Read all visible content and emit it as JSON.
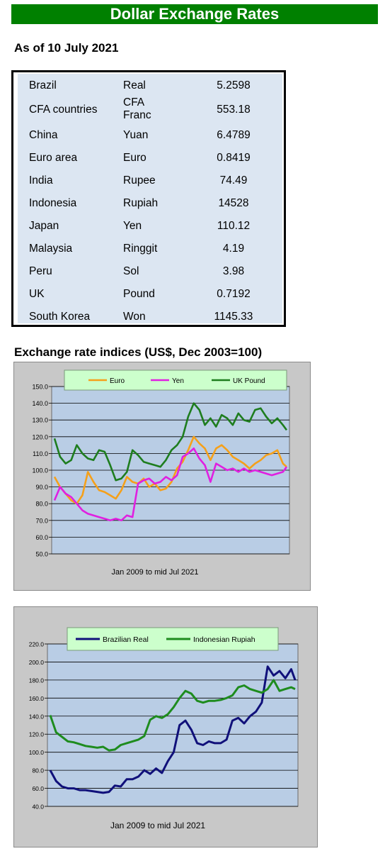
{
  "header": {
    "title": "Dollar Exchange Rates",
    "as_of": "As of 10 July 2021"
  },
  "rates": [
    {
      "country": "Brazil",
      "currency": "Real",
      "value": "5.2598"
    },
    {
      "country": "CFA countries",
      "currency": "CFA Franc",
      "value": "553.18"
    },
    {
      "country": "China",
      "currency": "Yuan",
      "value": "6.4789"
    },
    {
      "country": "Euro area",
      "currency": "Euro",
      "value": "0.8419"
    },
    {
      "country": "India",
      "currency": "Rupee",
      "value": "74.49"
    },
    {
      "country": "Indonesia",
      "currency": "Rupiah",
      "value": "14528"
    },
    {
      "country": "Japan",
      "currency": "Yen",
      "value": "110.12"
    },
    {
      "country": "Malaysia",
      "currency": "Ringgit",
      "value": "4.19"
    },
    {
      "country": "Peru",
      "currency": "Sol",
      "value": "3.98"
    },
    {
      "country": "UK",
      "currency": "Pound",
      "value": "0.7192"
    },
    {
      "country": "South Korea",
      "currency": "Won",
      "value": "1145.33"
    }
  ],
  "indices_title": "Exchange rate indices (US$, Dec 2003=100)",
  "chart_data": [
    {
      "type": "line",
      "title": "",
      "xlabel": "Jan 2009  to mid Jul 2021",
      "ylabel": "",
      "ylim": [
        50,
        150
      ],
      "yticks": [
        "50.0",
        "60.0",
        "70.0",
        "80.0",
        "90.0",
        "100.0",
        "110.0",
        "120.0",
        "130.0",
        "140.0",
        "150.0"
      ],
      "grid": true,
      "legend_position": "top",
      "x": [
        2009.0,
        2009.3,
        2009.6,
        2009.9,
        2010.2,
        2010.5,
        2010.8,
        2011.1,
        2011.4,
        2011.7,
        2012.0,
        2012.3,
        2012.6,
        2012.9,
        2013.2,
        2013.5,
        2013.8,
        2014.1,
        2014.4,
        2014.7,
        2015.0,
        2015.3,
        2015.6,
        2015.9,
        2016.2,
        2016.5,
        2016.8,
        2017.1,
        2017.4,
        2017.7,
        2018.0,
        2018.3,
        2018.6,
        2018.9,
        2019.2,
        2019.5,
        2019.8,
        2020.1,
        2020.4,
        2020.7,
        2021.0,
        2021.3,
        2021.5
      ],
      "series": [
        {
          "name": "Euro",
          "color": "#f5a01a",
          "values": [
            96,
            90,
            86,
            82,
            80,
            85,
            99,
            93,
            88,
            87,
            85,
            83,
            88,
            96,
            93,
            92,
            95,
            90,
            92,
            88,
            89,
            93,
            101,
            105,
            112,
            120,
            116,
            113,
            106,
            113,
            115,
            112,
            108,
            106,
            104,
            101,
            104,
            106,
            109,
            110,
            112,
            104,
            102
          ]
        },
        {
          "name": "Yen",
          "color": "#e020e0",
          "values": [
            82,
            90,
            86,
            84,
            80,
            76,
            74,
            73,
            72,
            71,
            70,
            71,
            70,
            73,
            72,
            92,
            94,
            95,
            92,
            93,
            96,
            94,
            97,
            108,
            110,
            113,
            107,
            103,
            93,
            104,
            102,
            100,
            101,
            99,
            101,
            99,
            100,
            99,
            98,
            97,
            98,
            99,
            102
          ]
        },
        {
          "name": "UK Pound",
          "color": "#1e7d1e",
          "values": [
            119,
            108,
            104,
            106,
            115,
            110,
            107,
            106,
            112,
            111,
            103,
            94,
            95,
            99,
            112,
            109,
            105,
            104,
            103,
            102,
            106,
            112,
            115,
            120,
            132,
            140,
            136,
            127,
            131,
            126,
            133,
            131,
            127,
            134,
            130,
            129,
            136,
            137,
            132,
            128,
            131,
            127,
            124
          ]
        }
      ]
    },
    {
      "type": "line",
      "title": "",
      "xlabel": "Jan 2009  to mid  Jul 2021",
      "ylabel": "",
      "ylim": [
        40,
        220
      ],
      "yticks": [
        "40.0",
        "60.0",
        "80.0",
        "100.0",
        "120.0",
        "140.0",
        "160.0",
        "180.0",
        "200.0",
        "220.0"
      ],
      "grid": true,
      "legend_position": "top",
      "x": [
        2009.0,
        2009.3,
        2009.6,
        2009.9,
        2010.2,
        2010.5,
        2010.8,
        2011.1,
        2011.4,
        2011.7,
        2012.0,
        2012.3,
        2012.6,
        2012.9,
        2013.2,
        2013.5,
        2013.8,
        2014.1,
        2014.4,
        2014.7,
        2015.0,
        2015.3,
        2015.6,
        2015.9,
        2016.2,
        2016.5,
        2016.8,
        2017.1,
        2017.4,
        2017.7,
        2018.0,
        2018.3,
        2018.6,
        2018.9,
        2019.2,
        2019.5,
        2019.8,
        2020.1,
        2020.4,
        2020.7,
        2021.0,
        2021.3,
        2021.5
      ],
      "series": [
        {
          "name": "Brazilian Real",
          "color": "#10107a",
          "values": [
            80,
            68,
            62,
            60,
            60,
            58,
            58,
            57,
            56,
            55,
            56,
            63,
            62,
            70,
            70,
            73,
            80,
            76,
            82,
            77,
            90,
            100,
            130,
            135,
            125,
            110,
            108,
            112,
            110,
            110,
            114,
            135,
            138,
            132,
            140,
            145,
            155,
            195,
            185,
            190,
            182,
            192,
            180
          ]
        },
        {
          "name": "Indonesian Rupiah",
          "color": "#1e8c1e",
          "values": [
            141,
            122,
            117,
            112,
            111,
            109,
            107,
            106,
            105,
            106,
            102,
            103,
            108,
            110,
            112,
            114,
            118,
            136,
            140,
            138,
            142,
            150,
            160,
            168,
            165,
            157,
            155,
            157,
            157,
            158,
            160,
            163,
            172,
            174,
            170,
            168,
            166,
            170,
            180,
            168,
            170,
            172,
            170
          ]
        }
      ]
    }
  ]
}
